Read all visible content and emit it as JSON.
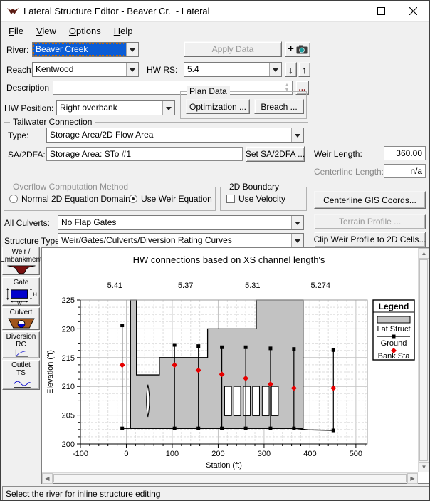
{
  "window": {
    "title": "Lateral Structure Editor - Beaver Cr.  - Lateral"
  },
  "menu": {
    "items": [
      {
        "label": "File"
      },
      {
        "label": "View"
      },
      {
        "label": "Options"
      },
      {
        "label": "Help"
      }
    ]
  },
  "form": {
    "river_label": "River:",
    "river_value": "Beaver Creek",
    "apply_button": "Apply Data",
    "reach_label": "Reach:",
    "reach_value": "Kentwood",
    "hw_rs_label": "HW RS:",
    "hw_rs_value": "5.4",
    "down_arrow": "↓",
    "up_arrow": "↑",
    "description_label": "Description",
    "description_value": "",
    "ellipsis_button": "...",
    "hw_position_label": "HW Position:",
    "hw_position_value": "Right overbank",
    "plan_data": {
      "caption": "Plan Data",
      "optimization_button": "Optimization ...",
      "breach_button": "Breach ..."
    },
    "tailwater": {
      "caption": "Tailwater Connection",
      "type_label": "Type:",
      "type_value": "Storage Area/2D Flow Area",
      "sa_label": "SA/2DFA:",
      "sa_value": "Storage Area: STo #1",
      "set_button": "Set SA/2DFA ..."
    },
    "weir_length_label": "Weir Length:",
    "weir_length_value": "360.00",
    "centerline_length_label": "Centerline Length:",
    "centerline_length_value": "n/a",
    "overflow": {
      "caption": "Overflow Computation Method",
      "radio_normal": "Normal 2D Equation Domain",
      "radio_weir": "Use Weir Equation"
    },
    "boundary_2d": {
      "caption": "2D Boundary",
      "checkbox_label": "Use Velocity"
    },
    "centerline_gis_button": "Centerline GIS Coords...",
    "all_culverts_label": "All Culverts:",
    "all_culverts_value": "No Flap Gates",
    "terrain_profile_button": "Terrain Profile ...",
    "structure_type_label": "Structure Type:",
    "structure_type_value": "Weir/Gates/Culverts/Diversion Rating Curves",
    "clip_weir_button": "Clip Weir Profile to 2D Cells..."
  },
  "sidebar": {
    "buttons": [
      {
        "id": "weir-embankment",
        "lines": [
          "Weir /",
          "Embankment"
        ]
      },
      {
        "id": "gate",
        "lines": [
          "Gate",
          ""
        ]
      },
      {
        "id": "culvert",
        "lines": [
          "Culvert",
          ""
        ]
      },
      {
        "id": "diversion-rc",
        "lines": [
          "Diversion",
          "RC"
        ]
      },
      {
        "id": "outlet-ts",
        "lines": [
          "Outlet",
          "TS"
        ]
      }
    ]
  },
  "chart_data": {
    "type": "line",
    "title": "HW connections based on XS channel length's",
    "xlabel": "Station (ft)",
    "ylabel": "Elevation (ft)",
    "xlim": [
      -100,
      525
    ],
    "ylim": [
      200,
      225
    ],
    "x_ticks": [
      -100,
      0,
      100,
      200,
      300,
      400,
      500
    ],
    "y_ticks": [
      200,
      205,
      210,
      215,
      220,
      225
    ],
    "x_minor_step": 20,
    "y_minor_step": 1.25,
    "top_axis_labels": [
      {
        "label": "5.41",
        "station": -25
      },
      {
        "label": "5.37",
        "station": 129
      },
      {
        "label": "5.31",
        "station": 275
      },
      {
        "label": "5.274",
        "station": 423
      }
    ],
    "lat_struct_profile": [
      [
        9,
        202.7
      ],
      [
        9,
        225
      ],
      [
        22,
        225
      ],
      [
        22,
        212
      ],
      [
        72,
        212
      ],
      [
        72,
        215
      ],
      [
        177,
        215
      ],
      [
        177,
        220
      ],
      [
        283,
        220
      ],
      [
        283,
        225
      ],
      [
        385,
        225
      ],
      [
        385,
        202.7
      ]
    ],
    "ground_line": [
      [
        -9,
        202.7
      ],
      [
        365,
        202.7
      ],
      [
        395,
        202.45
      ],
      [
        451,
        202.35
      ]
    ],
    "xs_connections": [
      {
        "station": -9,
        "top": 220.6,
        "bank": 213.7,
        "ground": 202.7
      },
      {
        "station": 105,
        "top": 217.2,
        "bank": 213.7,
        "ground": 202.7
      },
      {
        "station": 157,
        "top": 217.0,
        "bank": 212.8,
        "ground": 202.7
      },
      {
        "station": 208,
        "top": 216.8,
        "bank": 212.1,
        "ground": 202.7
      },
      {
        "station": 260,
        "top": 216.8,
        "bank": 211.4,
        "ground": 202.7
      },
      {
        "station": 314,
        "top": 216.6,
        "bank": 210.4,
        "ground": 202.7
      },
      {
        "station": 365,
        "top": 216.5,
        "bank": 209.7,
        "ground": 202.7
      },
      {
        "station": 451,
        "top": 216.3,
        "bank": 209.7,
        "ground": 202.35
      }
    ],
    "gates": [
      {
        "x1": 214,
        "x2": 229
      },
      {
        "x1": 234,
        "x2": 249
      },
      {
        "x1": 255,
        "x2": 270
      },
      {
        "x1": 275,
        "x2": 290
      },
      {
        "x1": 296,
        "x2": 311
      },
      {
        "x1": 316,
        "x2": 331
      }
    ],
    "gate_el_top": 210.0,
    "gate_el_bottom": 204.9,
    "culvert_lens": {
      "station": 47,
      "el_top": 210.3,
      "el_bottom": 204.7
    },
    "legend": {
      "title": "Legend",
      "entries": [
        "Lat Struct",
        "Ground",
        "Bank Sta"
      ]
    },
    "colors": {
      "struct_fill": "#c2c2c2",
      "ground": "#000000",
      "bank": "#e60000",
      "grid_major": "#c3c3c3",
      "grid_minor": "#dedede"
    }
  },
  "status_bar": {
    "text": "Select the river for inline structure editing"
  }
}
